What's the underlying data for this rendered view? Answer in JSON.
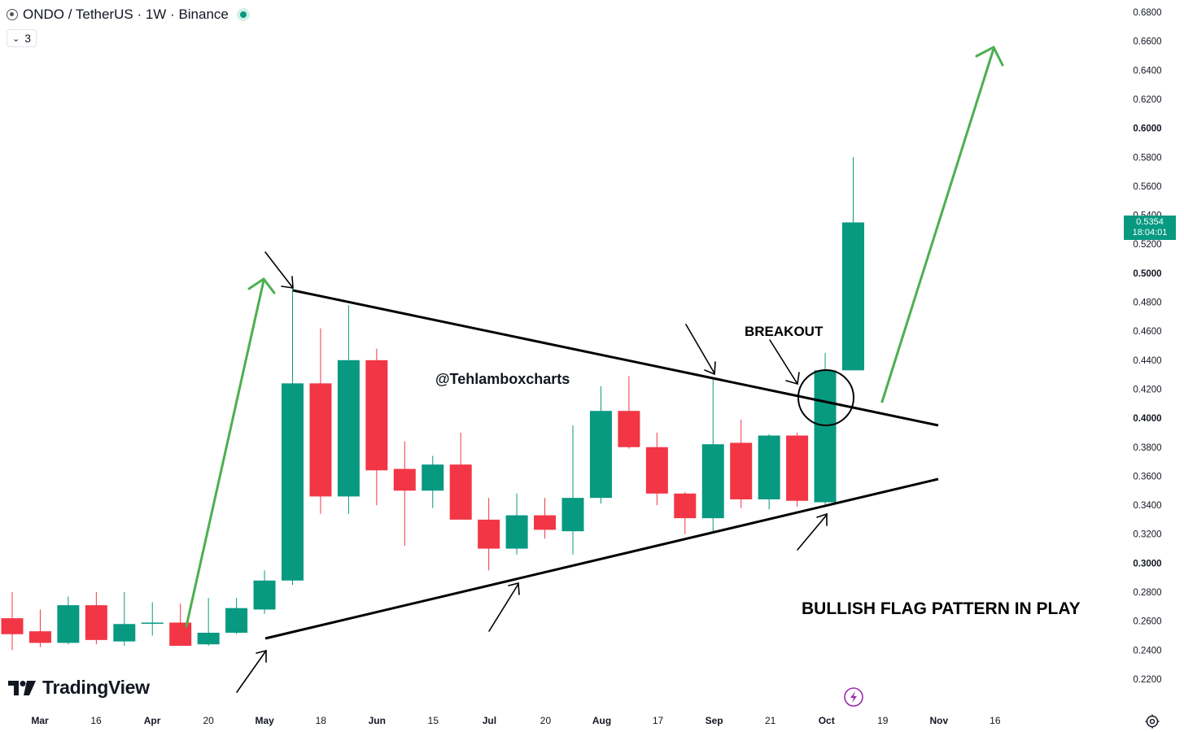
{
  "header": {
    "symbol": "ONDO / TetherUS · 1W · Binance",
    "indicator_count": "3"
  },
  "price_axis": {
    "labels": [
      "0.6800",
      "0.6600",
      "0.6400",
      "0.6200",
      "0.6000",
      "0.5800",
      "0.5600",
      "0.5400",
      "0.5200",
      "0.5000",
      "0.4800",
      "0.4600",
      "0.4400",
      "0.4200",
      "0.4000",
      "0.3800",
      "0.3600",
      "0.3400",
      "0.3200",
      "0.3000",
      "0.2800",
      "0.2600",
      "0.2400",
      "0.2200"
    ],
    "bold_labels": [
      "0.6000",
      "0.5000",
      "0.4000",
      "0.3000"
    ]
  },
  "time_axis": {
    "labels": [
      {
        "text": "Mar",
        "bold": true
      },
      {
        "text": "16",
        "bold": false
      },
      {
        "text": "Apr",
        "bold": true
      },
      {
        "text": "20",
        "bold": false
      },
      {
        "text": "May",
        "bold": true
      },
      {
        "text": "18",
        "bold": false
      },
      {
        "text": "Jun",
        "bold": true
      },
      {
        "text": "15",
        "bold": false
      },
      {
        "text": "Jul",
        "bold": true
      },
      {
        "text": "20",
        "bold": false
      },
      {
        "text": "Aug",
        "bold": true
      },
      {
        "text": "17",
        "bold": false
      },
      {
        "text": "Sep",
        "bold": true
      },
      {
        "text": "21",
        "bold": false
      },
      {
        "text": "Oct",
        "bold": true
      },
      {
        "text": "19",
        "bold": false
      },
      {
        "text": "Nov",
        "bold": true
      },
      {
        "text": "16",
        "bold": false
      }
    ]
  },
  "current_price": {
    "price": "0.5354",
    "countdown": "18:04:01",
    "value": 0.5354
  },
  "annotations": {
    "breakout": "BREAKOUT",
    "watermark": "@Tehlamboxcharts",
    "pattern_note": "BULLISH FLAG PATTERN IN PLAY"
  },
  "branding": {
    "logo_text": "TradingView"
  },
  "colors": {
    "up": "#089981",
    "down": "#f23645",
    "arrow_green": "#4caf50",
    "line": "#000000"
  },
  "chart_data": {
    "type": "candlestick",
    "ylim": [
      0.21,
      0.685
    ],
    "candles": [
      {
        "o": 0.262,
        "h": 0.28,
        "l": 0.24,
        "c": 0.251,
        "dir": "down"
      },
      {
        "o": 0.253,
        "h": 0.268,
        "l": 0.242,
        "c": 0.245,
        "dir": "down"
      },
      {
        "o": 0.245,
        "h": 0.277,
        "l": 0.244,
        "c": 0.271,
        "dir": "up"
      },
      {
        "o": 0.271,
        "h": 0.28,
        "l": 0.244,
        "c": 0.247,
        "dir": "down"
      },
      {
        "o": 0.246,
        "h": 0.28,
        "l": 0.243,
        "c": 0.258,
        "dir": "up"
      },
      {
        "o": 0.259,
        "h": 0.273,
        "l": 0.25,
        "c": 0.259,
        "dir": "flat"
      },
      {
        "o": 0.259,
        "h": 0.272,
        "l": 0.243,
        "c": 0.243,
        "dir": "down"
      },
      {
        "o": 0.244,
        "h": 0.276,
        "l": 0.243,
        "c": 0.252,
        "dir": "up"
      },
      {
        "o": 0.252,
        "h": 0.276,
        "l": 0.251,
        "c": 0.269,
        "dir": "up"
      },
      {
        "o": 0.268,
        "h": 0.295,
        "l": 0.265,
        "c": 0.288,
        "dir": "up"
      },
      {
        "o": 0.288,
        "h": 0.495,
        "l": 0.285,
        "c": 0.424,
        "dir": "up"
      },
      {
        "o": 0.424,
        "h": 0.462,
        "l": 0.334,
        "c": 0.346,
        "dir": "down"
      },
      {
        "o": 0.346,
        "h": 0.478,
        "l": 0.334,
        "c": 0.44,
        "dir": "up"
      },
      {
        "o": 0.44,
        "h": 0.448,
        "l": 0.34,
        "c": 0.364,
        "dir": "down"
      },
      {
        "o": 0.365,
        "h": 0.384,
        "l": 0.312,
        "c": 0.35,
        "dir": "down"
      },
      {
        "o": 0.35,
        "h": 0.374,
        "l": 0.338,
        "c": 0.368,
        "dir": "up"
      },
      {
        "o": 0.368,
        "h": 0.39,
        "l": 0.334,
        "c": 0.33,
        "dir": "down"
      },
      {
        "o": 0.33,
        "h": 0.345,
        "l": 0.295,
        "c": 0.31,
        "dir": "down"
      },
      {
        "o": 0.31,
        "h": 0.348,
        "l": 0.306,
        "c": 0.333,
        "dir": "up"
      },
      {
        "o": 0.333,
        "h": 0.345,
        "l": 0.317,
        "c": 0.323,
        "dir": "down"
      },
      {
        "o": 0.322,
        "h": 0.395,
        "l": 0.306,
        "c": 0.345,
        "dir": "up"
      },
      {
        "o": 0.345,
        "h": 0.422,
        "l": 0.341,
        "c": 0.405,
        "dir": "up"
      },
      {
        "o": 0.405,
        "h": 0.429,
        "l": 0.379,
        "c": 0.38,
        "dir": "down"
      },
      {
        "o": 0.38,
        "h": 0.39,
        "l": 0.34,
        "c": 0.348,
        "dir": "down"
      },
      {
        "o": 0.348,
        "h": 0.349,
        "l": 0.32,
        "c": 0.331,
        "dir": "down"
      },
      {
        "o": 0.331,
        "h": 0.427,
        "l": 0.322,
        "c": 0.382,
        "dir": "up"
      },
      {
        "o": 0.383,
        "h": 0.399,
        "l": 0.338,
        "c": 0.344,
        "dir": "down"
      },
      {
        "o": 0.344,
        "h": 0.389,
        "l": 0.337,
        "c": 0.388,
        "dir": "up"
      },
      {
        "o": 0.388,
        "h": 0.39,
        "l": 0.339,
        "c": 0.343,
        "dir": "down"
      },
      {
        "o": 0.342,
        "h": 0.445,
        "l": 0.339,
        "c": 0.433,
        "dir": "up"
      },
      {
        "o": 0.433,
        "h": 0.58,
        "l": 0.433,
        "c": 0.535,
        "dir": "up"
      }
    ]
  }
}
